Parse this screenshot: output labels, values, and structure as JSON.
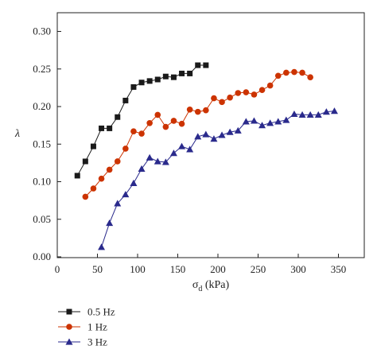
{
  "chart_data": {
    "type": "line",
    "xlabel_main": "σ",
    "xlabel_sub": "d",
    "xlabel_unit": " (kPa)",
    "ylabel": "λ",
    "xlim": [
      0,
      360
    ],
    "ylim": [
      0,
      0.32
    ],
    "xticks": [
      0,
      50,
      100,
      150,
      200,
      250,
      300,
      350
    ],
    "yticks": [
      0.0,
      0.05,
      0.1,
      0.15,
      0.2,
      0.25,
      0.3
    ],
    "xtick_labels": [
      "0",
      "50",
      "100",
      "150",
      "200",
      "250",
      "300",
      "350"
    ],
    "ytick_labels": [
      "0.00",
      "0.05",
      "0.10",
      "0.15",
      "0.20",
      "0.25",
      "0.30"
    ],
    "grid": false,
    "legend_position": "bottom-left",
    "series": [
      {
        "name": "0.5 Hz",
        "marker": "square",
        "color": "#1a1a1a",
        "x": [
          25,
          35,
          45,
          55,
          65,
          75,
          85,
          95,
          105,
          115,
          125,
          135,
          145,
          155,
          165,
          175,
          185
        ],
        "y": [
          0.108,
          0.127,
          0.147,
          0.171,
          0.171,
          0.186,
          0.208,
          0.226,
          0.232,
          0.234,
          0.236,
          0.24,
          0.239,
          0.244,
          0.244,
          0.255,
          0.255
        ]
      },
      {
        "name": "1 Hz",
        "marker": "circle",
        "color": "#cc3300",
        "x": [
          35,
          45,
          55,
          65,
          75,
          85,
          95,
          105,
          115,
          125,
          135,
          145,
          155,
          165,
          175,
          185,
          195,
          205,
          215,
          225,
          235,
          245,
          255,
          265,
          275,
          285,
          295,
          305,
          315
        ],
        "y": [
          0.08,
          0.091,
          0.104,
          0.116,
          0.127,
          0.144,
          0.167,
          0.164,
          0.178,
          0.189,
          0.173,
          0.181,
          0.177,
          0.196,
          0.193,
          0.195,
          0.211,
          0.206,
          0.212,
          0.218,
          0.219,
          0.216,
          0.222,
          0.228,
          0.241,
          0.245,
          0.246,
          0.245,
          0.239
        ]
      },
      {
        "name": "3 Hz",
        "marker": "triangle",
        "color": "#2a2a8c",
        "x": [
          55,
          65,
          75,
          85,
          95,
          105,
          115,
          125,
          135,
          145,
          155,
          165,
          175,
          185,
          195,
          205,
          215,
          225,
          235,
          245,
          255,
          265,
          275,
          285,
          295,
          305,
          315,
          325,
          335,
          345
        ],
        "y": [
          0.013,
          0.045,
          0.071,
          0.083,
          0.098,
          0.117,
          0.132,
          0.127,
          0.126,
          0.138,
          0.147,
          0.143,
          0.16,
          0.163,
          0.157,
          0.162,
          0.166,
          0.168,
          0.18,
          0.181,
          0.175,
          0.178,
          0.18,
          0.182,
          0.19,
          0.189,
          0.189,
          0.189,
          0.193,
          0.194
        ]
      }
    ]
  }
}
